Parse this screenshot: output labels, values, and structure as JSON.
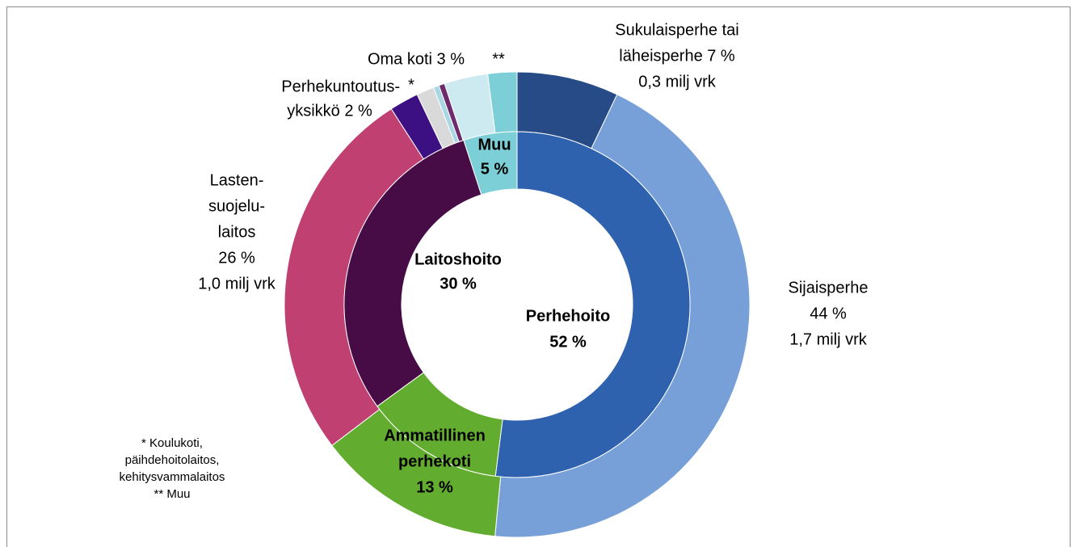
{
  "chart_data": {
    "type": "nested-donut",
    "outer": {
      "labels": [
        [
          "Sukulaisperhe tai",
          "läheisperhe 7 %",
          "0,3 milj vrk"
        ],
        [
          "Sijaisperhe",
          "44 %",
          "1,7 milj vrk"
        ],
        null,
        [
          "Lasten-",
          "suojelu-",
          "laitos",
          "26 %",
          "1,0 milj vrk"
        ],
        [
          "Perhekuntoutus-",
          "yksikkö 2 %"
        ],
        [
          "*"
        ],
        null,
        null,
        [
          "Oma koti 3 %"
        ],
        [
          "**"
        ]
      ],
      "values": [
        7,
        44,
        13,
        26,
        2,
        1.2,
        0.4,
        0.4,
        3,
        2
      ],
      "colors": [
        "#264b87",
        "#77a0d9",
        "#62ad2f",
        "#bf4071",
        "#3c1082",
        "#d9d9d9",
        "#a9d7e3",
        "#6d2b6d",
        "#cdeaf0",
        "#7ccfd6"
      ]
    },
    "inner": {
      "labels": [
        [
          "Perhehoito",
          "52 %"
        ],
        [
          "Ammatillinen",
          "perhekoti",
          "13 %"
        ],
        [
          "Laitoshoito",
          "30 %"
        ],
        [
          "Muu",
          "5 %"
        ]
      ],
      "values": [
        52,
        13,
        30,
        5
      ],
      "colors": [
        "#2f62ae",
        "#62ad2f",
        "#470b46",
        "#7ccfd6"
      ]
    },
    "footnote": [
      "* Koulukoti,",
      "päihdehoitolaitos,",
      "kehitysvammalaitos",
      "** Muu"
    ]
  }
}
